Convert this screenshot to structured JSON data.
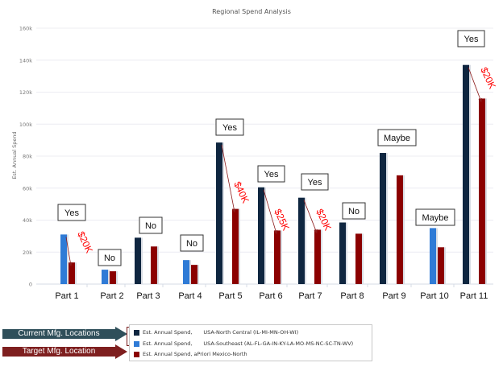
{
  "chart_data": {
    "type": "bar",
    "title": "Regional Spend Analysis",
    "xlabel": "",
    "ylabel": "Est. Annual Spend",
    "ylim": [
      0,
      160000
    ],
    "yticks": [
      {
        "value": 0,
        "label": "0"
      },
      {
        "value": 20000,
        "label": "20k"
      },
      {
        "value": 40000,
        "label": "40k"
      },
      {
        "value": 60000,
        "label": "60k"
      },
      {
        "value": 80000,
        "label": "80k"
      },
      {
        "value": 100000,
        "label": "100k"
      },
      {
        "value": 120000,
        "label": "120k"
      },
      {
        "value": 140000,
        "label": "140k"
      },
      {
        "value": 160000,
        "label": "160k"
      }
    ],
    "grid": true,
    "categories": [
      "Part 1",
      "Part 2",
      "Part 3",
      "Part 4",
      "Part 5",
      "Part 6",
      "Part 7",
      "Part 8",
      "Part 9",
      "Part 10",
      "Part 11"
    ],
    "series": [
      {
        "name": "Est. Annual Spend, USA-North Central (IL-MI-MN-OH-WI)",
        "color": "#0f2640",
        "values": [
          null,
          null,
          29000,
          null,
          88500,
          60500,
          54000,
          38500,
          82000,
          null,
          137000
        ]
      },
      {
        "name": "Est. Annual Spend, USA-Southeast (AL-FL-GA-IN-KY-LA-MO-MS-NC-SC-TN-WV)",
        "color": "#2f7bd6",
        "values": [
          31000,
          9000,
          null,
          15000,
          null,
          null,
          null,
          null,
          null,
          35000,
          null
        ]
      },
      {
        "name": "Est. Annual Spend, aPriori Mexico-North",
        "color": "#8b0000",
        "values": [
          13500,
          8000,
          23500,
          12000,
          47000,
          33500,
          34000,
          31500,
          68000,
          23000,
          116000
        ]
      }
    ],
    "decisions": [
      "Yes",
      "No",
      "No",
      "No",
      "Yes",
      "Yes",
      "Yes",
      "No",
      "Maybe",
      "Maybe",
      "Yes"
    ],
    "savings": [
      {
        "category": "Part 1",
        "label": "$20K"
      },
      {
        "category": "Part 5",
        "label": "$40K"
      },
      {
        "category": "Part 6",
        "label": "$25K"
      },
      {
        "category": "Part 7",
        "label": "$20K"
      },
      {
        "category": "Part 11",
        "label": "$20K"
      }
    ],
    "legend_position": "bottom"
  },
  "legend": {
    "items": [
      {
        "name": "Est. Annual Spend,",
        "region": "USA-North Central (IL-MI-MN-OH-WI)",
        "color": "#0f2640"
      },
      {
        "name": "Est. Annual Spend,",
        "region": "USA-Southeast (AL-FL-GA-IN-KY-LA-MO-MS-NC-SC-TN-WV)",
        "color": "#2f7bd6"
      },
      {
        "name": "Est. Annual Spend, aPriori Mexico-North",
        "region": "",
        "color": "#8b0000"
      }
    ]
  },
  "annotations": {
    "current_label": "Current Mfg. Locations",
    "target_label": "Target Mfg. Location"
  },
  "colors": {
    "savings_text": "#ff0000",
    "savings_arrow": "#8b1a1a",
    "grid": "#ececf2"
  }
}
